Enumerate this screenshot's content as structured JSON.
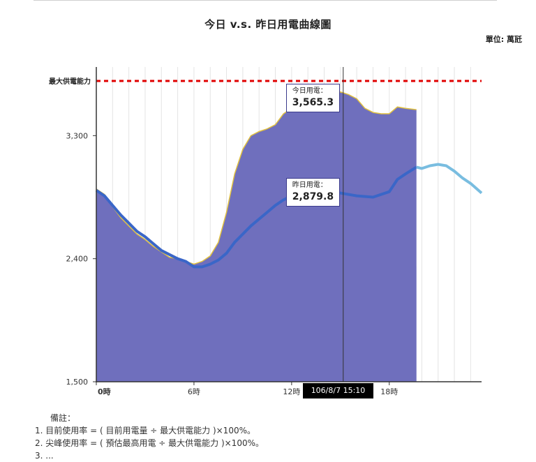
{
  "chart_data": {
    "type": "area",
    "title": "今日 v.s. 昨日用電曲線圖",
    "unit_label": "單位: 萬瓩",
    "max_capacity_label": "最大供電能力",
    "max_capacity_value": 3700,
    "ylim": [
      1500,
      3700
    ],
    "y_ticks": [
      {
        "value": 1500,
        "label": "1,500"
      },
      {
        "value": 2400,
        "label": "2,400"
      },
      {
        "value": 3300,
        "label": "3,300"
      }
    ],
    "x_range_hours": [
      0,
      23.67
    ],
    "x_ticks": [
      {
        "hour": 0,
        "label": "0時"
      },
      {
        "hour": 6,
        "label": "6時"
      },
      {
        "hour": 12,
        "label": "12時"
      },
      {
        "hour": 18,
        "label": "18時"
      }
    ],
    "series": [
      {
        "name": "今日用電",
        "color": "#6f6fbd",
        "points": [
          [
            0,
            2910
          ],
          [
            0.5,
            2870
          ],
          [
            1,
            2780
          ],
          [
            1.5,
            2700
          ],
          [
            2,
            2640
          ],
          [
            2.5,
            2580
          ],
          [
            3,
            2540
          ],
          [
            3.5,
            2490
          ],
          [
            4,
            2450
          ],
          [
            4.5,
            2410
          ],
          [
            5,
            2400
          ],
          [
            5.5,
            2380
          ],
          [
            6,
            2360
          ],
          [
            6.5,
            2380
          ],
          [
            7,
            2420
          ],
          [
            7.5,
            2520
          ],
          [
            8,
            2740
          ],
          [
            8.5,
            3020
          ],
          [
            9,
            3200
          ],
          [
            9.5,
            3300
          ],
          [
            10,
            3330
          ],
          [
            10.5,
            3350
          ],
          [
            11,
            3380
          ],
          [
            11.5,
            3460
          ],
          [
            12,
            3500
          ],
          [
            12.5,
            3490
          ],
          [
            13,
            3540
          ],
          [
            13.5,
            3560
          ],
          [
            14,
            3570
          ],
          [
            14.5,
            3580
          ],
          [
            15,
            3620
          ],
          [
            15.5,
            3600
          ],
          [
            16,
            3570
          ],
          [
            16.5,
            3500
          ],
          [
            17,
            3470
          ],
          [
            17.5,
            3460
          ],
          [
            18,
            3460
          ],
          [
            18.5,
            3510
          ],
          [
            19,
            3500
          ],
          [
            19.67,
            3490
          ]
        ]
      },
      {
        "name": "昨日用電",
        "color": "#4f8fd8",
        "points": [
          [
            0,
            2900
          ],
          [
            0.5,
            2860
          ],
          [
            1,
            2790
          ],
          [
            1.5,
            2720
          ],
          [
            2,
            2660
          ],
          [
            2.5,
            2600
          ],
          [
            3,
            2560
          ],
          [
            3.5,
            2510
          ],
          [
            4,
            2460
          ],
          [
            4.5,
            2430
          ],
          [
            5,
            2400
          ],
          [
            5.5,
            2380
          ],
          [
            6,
            2340
          ],
          [
            6.5,
            2340
          ],
          [
            7,
            2360
          ],
          [
            7.5,
            2390
          ],
          [
            8,
            2440
          ],
          [
            8.5,
            2520
          ],
          [
            9,
            2580
          ],
          [
            9.5,
            2640
          ],
          [
            10,
            2690
          ],
          [
            10.5,
            2740
          ],
          [
            11,
            2790
          ],
          [
            11.5,
            2830
          ],
          [
            12,
            2860
          ],
          [
            12.5,
            2880
          ],
          [
            13,
            2890
          ],
          [
            14,
            2900
          ],
          [
            15,
            2880
          ],
          [
            16,
            2860
          ],
          [
            17,
            2850
          ],
          [
            18,
            2890
          ],
          [
            18.5,
            2980
          ],
          [
            19,
            3020
          ],
          [
            19.67,
            3070
          ],
          [
            20,
            3060
          ],
          [
            20.5,
            3080
          ],
          [
            21,
            3090
          ],
          [
            21.5,
            3080
          ],
          [
            22,
            3040
          ],
          [
            22.5,
            2990
          ],
          [
            23,
            2950
          ],
          [
            23.67,
            2880
          ]
        ]
      }
    ],
    "tooltip_today": {
      "label": "今日用電：",
      "value": "3,565.3",
      "hour": 15.17
    },
    "tooltip_yesterday": {
      "label": "昨日用電：",
      "value": "2,879.8",
      "hour": 15.17
    },
    "crosshair_label": "106/8/7 15:10",
    "crosshair_hour": 15.17,
    "grid": true
  },
  "notes": {
    "title": "備註：",
    "items": [
      "1.  目前使用率 = ( 目前用電量 ÷ 最大供電能力 )×100%。",
      "2.  尖峰使用率 = ( 預估最高用電 ÷ 最大供電能力 )×100%。",
      "3.  ..."
    ]
  }
}
